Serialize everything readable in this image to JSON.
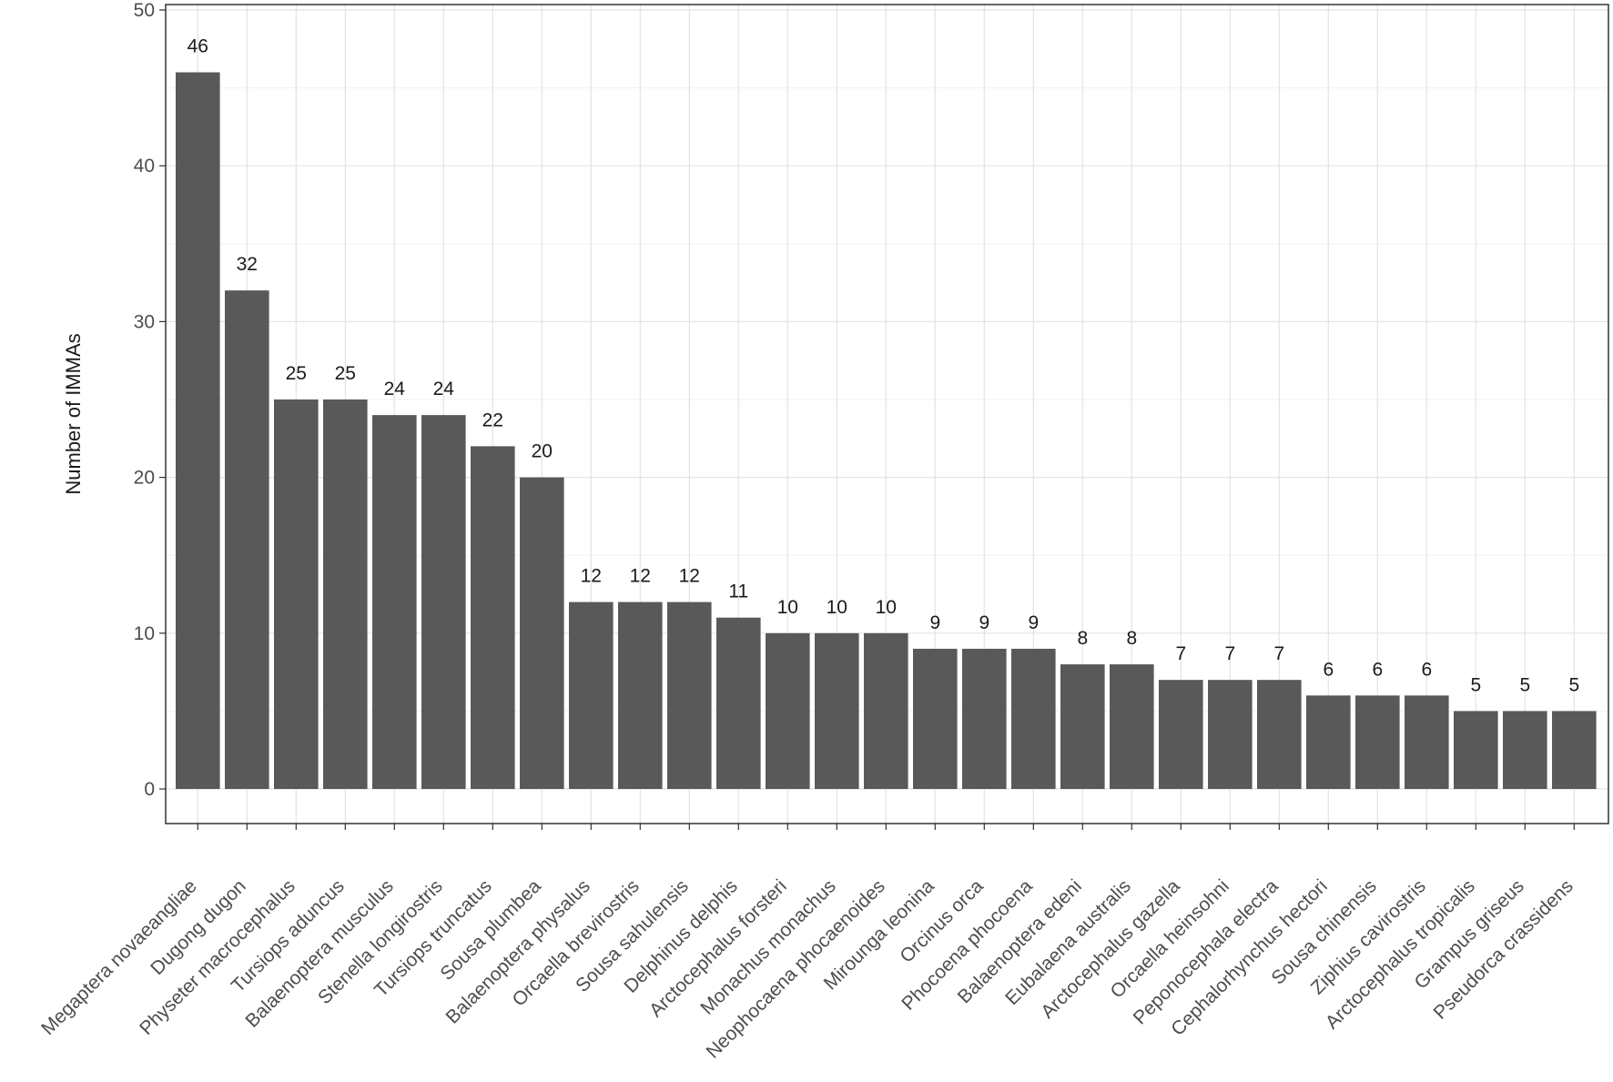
{
  "chart_data": {
    "type": "bar",
    "title": "",
    "xlabel": "",
    "ylabel": "Number of IMMAs",
    "ylim": [
      0,
      50
    ],
    "yticks": [
      0,
      10,
      20,
      30,
      40,
      50
    ],
    "grid": true,
    "legend": "none",
    "bar_color": "#595959",
    "categories": [
      "Megaptera novaeangliae",
      "Dugong dugon",
      "Physeter macrocephalus",
      "Tursiops aduncus",
      "Balaenoptera musculus",
      "Stenella longirostris",
      "Tursiops truncatus",
      "Sousa plumbea",
      "Balaenoptera physalus",
      "Orcaella brevirostris",
      "Sousa sahulensis",
      "Delphinus delphis",
      "Arctocephalus forsteri",
      "Monachus monachus",
      "Neophocaena phocaenoides",
      "Mirounga leonina",
      "Orcinus orca",
      "Phocoena phocoena",
      "Balaenoptera edeni",
      "Eubalaena australis",
      "Arctocephalus gazella",
      "Orcaella heinsohni",
      "Peponocephala electra",
      "Cephalorhynchus hectori",
      "Sousa chinensis",
      "Ziphius cavirostris",
      "Arctocephalus tropicalis",
      "Grampus griseus",
      "Pseudorca crassidens"
    ],
    "values": [
      46,
      32,
      25,
      25,
      24,
      24,
      22,
      20,
      12,
      12,
      12,
      11,
      10,
      10,
      10,
      9,
      9,
      9,
      8,
      8,
      7,
      7,
      7,
      6,
      6,
      6,
      5,
      5,
      5
    ]
  }
}
